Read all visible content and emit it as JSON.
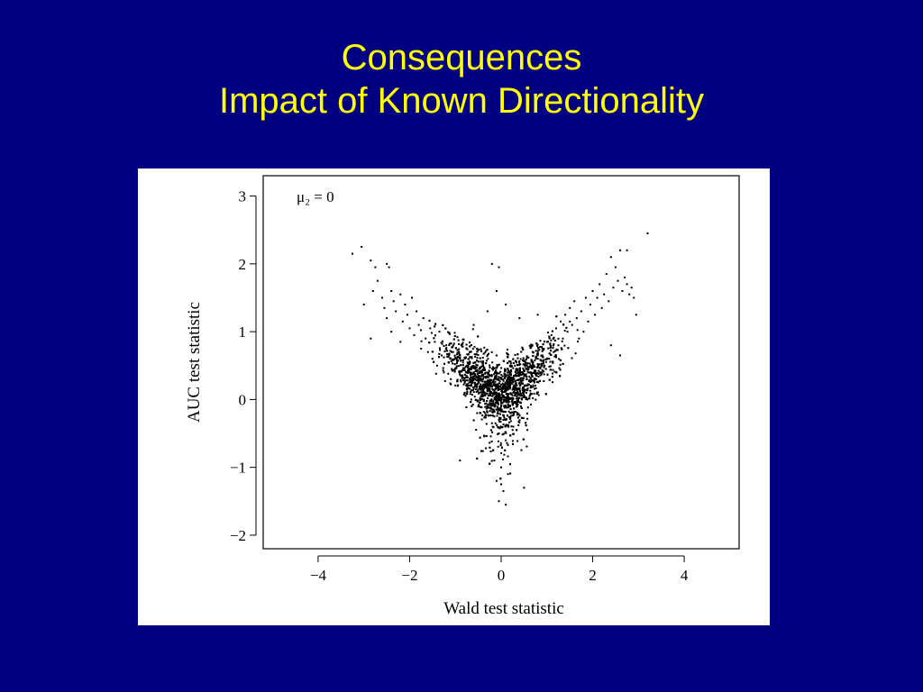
{
  "slide": {
    "title_line1": "Consequences",
    "title_line2": "Impact of Known Directionality",
    "background_color": "#000080",
    "title_color": "#ffff00"
  },
  "chart_data": {
    "type": "scatter",
    "xlabel": "Wald test statistic",
    "ylabel": "AUC test statistic",
    "annotation": "μ₂ = 0",
    "xlim": [
      -5.2,
      5.2
    ],
    "ylim": [
      -2.2,
      3.3
    ],
    "xticks": [
      -4,
      -2,
      0,
      2,
      4
    ],
    "xtick_labels": [
      "−4",
      "−2",
      "0",
      "2",
      "4"
    ],
    "yticks": [
      -2,
      -1,
      0,
      1,
      2,
      3
    ],
    "ytick_labels": [
      "−2",
      "−1",
      "0",
      "1",
      "2",
      "3"
    ],
    "grid": false,
    "point_color": "#000000",
    "description_of_shape": "V-shaped cloud of ~4000 points centered near (0, 0.2); arms rise toward (-3, 1.5) and (2.8, 1.6); lower tip near (0, -1.5)",
    "series": [
      {
        "name": "",
        "points": [
          [
            -3.25,
            2.15
          ],
          [
            -3.05,
            2.25
          ],
          [
            -2.85,
            2.05
          ],
          [
            -2.75,
            1.95
          ],
          [
            -2.5,
            2.0
          ],
          [
            -2.45,
            1.95
          ],
          [
            -3.0,
            1.4
          ],
          [
            -2.8,
            1.6
          ],
          [
            -2.7,
            1.75
          ],
          [
            -2.6,
            1.5
          ],
          [
            -2.55,
            1.35
          ],
          [
            -2.5,
            1.2
          ],
          [
            -2.4,
            1.6
          ],
          [
            -2.35,
            1.45
          ],
          [
            -2.3,
            1.3
          ],
          [
            -2.2,
            1.55
          ],
          [
            -2.15,
            1.15
          ],
          [
            -2.1,
            1.4
          ],
          [
            -2.05,
            1.25
          ],
          [
            -2.0,
            1.05
          ],
          [
            -1.95,
            1.5
          ],
          [
            -1.9,
            0.95
          ],
          [
            -1.85,
            1.3
          ],
          [
            -1.8,
            1.1
          ],
          [
            -2.85,
            0.9
          ],
          [
            -2.4,
            1.0
          ],
          [
            -2.2,
            0.85
          ],
          [
            -1.75,
            0.75
          ],
          [
            -1.7,
            1.2
          ],
          [
            -1.65,
            0.9
          ],
          [
            -1.6,
            0.7
          ],
          [
            -1.55,
            1.05
          ],
          [
            -1.5,
            0.6
          ],
          [
            -1.45,
            0.85
          ],
          [
            -1.4,
            0.5
          ],
          [
            -1.35,
            1.0
          ],
          [
            -1.3,
            0.65
          ],
          [
            -1.25,
            0.4
          ],
          [
            -1.2,
            0.8
          ],
          [
            -1.15,
            0.55
          ],
          [
            -1.1,
            0.3
          ],
          [
            -1.05,
            0.7
          ],
          [
            -1.0,
            0.45
          ],
          [
            -0.95,
            0.2
          ],
          [
            -0.9,
            0.6
          ],
          [
            -0.85,
            0.35
          ],
          [
            -0.8,
            0.1
          ],
          [
            -0.75,
            0.5
          ],
          [
            -0.7,
            0.25
          ],
          [
            -0.65,
            0.0
          ],
          [
            -0.6,
            0.4
          ],
          [
            -0.55,
            0.15
          ],
          [
            -0.5,
            -0.1
          ],
          [
            -0.45,
            0.3
          ],
          [
            -0.4,
            0.05
          ],
          [
            -0.35,
            -0.2
          ],
          [
            -0.3,
            0.2
          ],
          [
            -0.25,
            -0.05
          ],
          [
            -0.2,
            -0.35
          ],
          [
            -0.15,
            0.1
          ],
          [
            -0.1,
            -0.15
          ],
          [
            -0.05,
            -0.5
          ],
          [
            0.0,
            0.0
          ],
          [
            0.05,
            -0.3
          ],
          [
            0.1,
            -0.6
          ],
          [
            0.15,
            0.05
          ],
          [
            0.2,
            -0.2
          ],
          [
            0.25,
            -0.45
          ],
          [
            0.3,
            0.15
          ],
          [
            0.35,
            -0.1
          ],
          [
            0.4,
            0.25
          ],
          [
            0.45,
            0.0
          ],
          [
            0.5,
            0.35
          ],
          [
            0.55,
            0.1
          ],
          [
            0.6,
            0.45
          ],
          [
            0.65,
            0.2
          ],
          [
            0.7,
            0.55
          ],
          [
            0.75,
            0.3
          ],
          [
            0.8,
            0.65
          ],
          [
            0.85,
            0.4
          ],
          [
            0.9,
            0.75
          ],
          [
            0.95,
            0.5
          ],
          [
            1.0,
            0.85
          ],
          [
            1.05,
            0.6
          ],
          [
            1.1,
            0.95
          ],
          [
            1.15,
            0.7
          ],
          [
            1.2,
            1.05
          ],
          [
            1.25,
            0.8
          ],
          [
            1.3,
            1.15
          ],
          [
            1.35,
            0.9
          ],
          [
            1.4,
            1.25
          ],
          [
            1.45,
            1.0
          ],
          [
            1.5,
            1.35
          ],
          [
            1.55,
            1.1
          ],
          [
            1.6,
            1.45
          ],
          [
            1.65,
            1.2
          ],
          [
            1.7,
            0.9
          ],
          [
            1.75,
            1.3
          ],
          [
            1.8,
            1.0
          ],
          [
            1.85,
            1.5
          ],
          [
            1.9,
            1.15
          ],
          [
            1.95,
            1.4
          ],
          [
            2.0,
            1.6
          ],
          [
            2.05,
            1.25
          ],
          [
            2.1,
            1.5
          ],
          [
            2.15,
            1.7
          ],
          [
            2.2,
            1.35
          ],
          [
            2.25,
            1.55
          ],
          [
            2.3,
            1.85
          ],
          [
            2.35,
            1.45
          ],
          [
            2.4,
            2.1
          ],
          [
            2.45,
            1.65
          ],
          [
            2.5,
            1.95
          ],
          [
            2.55,
            1.75
          ],
          [
            2.6,
            2.2
          ],
          [
            2.65,
            1.6
          ],
          [
            2.7,
            1.8
          ],
          [
            2.75,
            1.7
          ],
          [
            2.8,
            1.55
          ],
          [
            2.85,
            1.65
          ],
          [
            2.9,
            1.5
          ],
          [
            2.95,
            1.25
          ],
          [
            3.2,
            2.45
          ],
          [
            2.75,
            2.2
          ],
          [
            2.6,
            0.65
          ],
          [
            2.4,
            0.8
          ],
          [
            0.0,
            -1.0
          ],
          [
            -0.1,
            -1.2
          ],
          [
            0.05,
            -1.35
          ],
          [
            -0.05,
            -1.5
          ],
          [
            0.1,
            -1.55
          ],
          [
            0.0,
            -1.25
          ],
          [
            -0.15,
            -0.9
          ],
          [
            0.15,
            -1.1
          ],
          [
            0.5,
            -1.3
          ],
          [
            -0.9,
            -0.9
          ],
          [
            -0.2,
            2.0
          ],
          [
            -0.05,
            1.95
          ],
          [
            -0.1,
            1.6
          ],
          [
            -0.3,
            1.3
          ],
          [
            0.1,
            1.4
          ],
          [
            0.4,
            1.2
          ],
          [
            -0.6,
            1.1
          ],
          [
            0.8,
            1.25
          ]
        ]
      }
    ]
  }
}
